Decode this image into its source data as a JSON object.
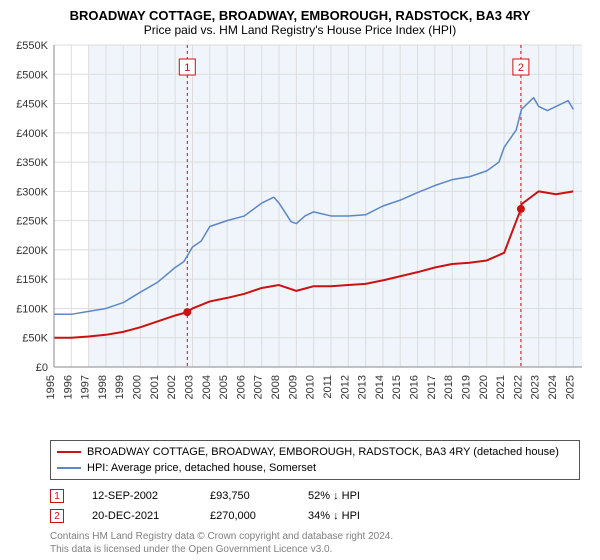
{
  "chart": {
    "title": "BROADWAY COTTAGE, BROADWAY, EMBOROUGH, RADSTOCK, BA3 4RY",
    "subtitle": "Price paid vs. HM Land Registry's House Price Index (HPI)",
    "background_color": "#ffffff",
    "plot_shade_color": "#f0f5fb",
    "grid_color": "#dddddd",
    "axis_color": "#888888",
    "text_color": "#333333",
    "label_fontsize": 11,
    "x_years": [
      1995,
      1996,
      1997,
      1998,
      1999,
      2000,
      2001,
      2002,
      2003,
      2004,
      2005,
      2006,
      2007,
      2008,
      2009,
      2010,
      2011,
      2012,
      2013,
      2014,
      2015,
      2016,
      2017,
      2018,
      2019,
      2020,
      2021,
      2022,
      2023,
      2024,
      2025
    ],
    "xlim": [
      1995,
      2025.5
    ],
    "ylim": [
      0,
      550000
    ],
    "ytick_step": 50000,
    "ytick_labels": [
      "£0",
      "£50K",
      "£100K",
      "£150K",
      "£200K",
      "£250K",
      "£300K",
      "£350K",
      "£400K",
      "£450K",
      "£500K",
      "£550K"
    ],
    "plot_shade_range": [
      1997,
      2025.5
    ],
    "series": [
      {
        "label": "BROADWAY COTTAGE, BROADWAY, EMBOROUGH, RADSTOCK, BA3 4RY (detached house)",
        "color": "#cc1111",
        "line_width": 2,
        "points": [
          [
            1995,
            50000
          ],
          [
            1996,
            50000
          ],
          [
            1997,
            52000
          ],
          [
            1998,
            55000
          ],
          [
            1999,
            60000
          ],
          [
            2000,
            68000
          ],
          [
            2001,
            78000
          ],
          [
            2002,
            88000
          ],
          [
            2002.7,
            93750
          ],
          [
            2003,
            100000
          ],
          [
            2004,
            112000
          ],
          [
            2005,
            118000
          ],
          [
            2006,
            125000
          ],
          [
            2007,
            135000
          ],
          [
            2008,
            140000
          ],
          [
            2009,
            130000
          ],
          [
            2010,
            138000
          ],
          [
            2011,
            138000
          ],
          [
            2012,
            140000
          ],
          [
            2013,
            142000
          ],
          [
            2014,
            148000
          ],
          [
            2015,
            155000
          ],
          [
            2016,
            162000
          ],
          [
            2017,
            170000
          ],
          [
            2018,
            176000
          ],
          [
            2019,
            178000
          ],
          [
            2020,
            182000
          ],
          [
            2021,
            195000
          ],
          [
            2021.97,
            270000
          ],
          [
            2022,
            278000
          ],
          [
            2023,
            300000
          ],
          [
            2024,
            295000
          ],
          [
            2025,
            300000
          ]
        ],
        "dots": [
          [
            2002.7,
            93750
          ],
          [
            2021.97,
            270000
          ]
        ]
      },
      {
        "label": "HPI: Average price, detached house, Somerset",
        "color": "#5b87c7",
        "line_width": 1.5,
        "points": [
          [
            1995,
            90000
          ],
          [
            1996,
            90000
          ],
          [
            1997,
            95000
          ],
          [
            1998,
            100000
          ],
          [
            1999,
            110000
          ],
          [
            2000,
            128000
          ],
          [
            2001,
            145000
          ],
          [
            2002,
            170000
          ],
          [
            2002.5,
            180000
          ],
          [
            2003,
            205000
          ],
          [
            2003.5,
            215000
          ],
          [
            2004,
            240000
          ],
          [
            2005,
            250000
          ],
          [
            2006,
            258000
          ],
          [
            2007,
            280000
          ],
          [
            2007.7,
            290000
          ],
          [
            2008,
            280000
          ],
          [
            2008.7,
            248000
          ],
          [
            2009,
            245000
          ],
          [
            2009.5,
            258000
          ],
          [
            2010,
            265000
          ],
          [
            2011,
            258000
          ],
          [
            2012,
            258000
          ],
          [
            2013,
            260000
          ],
          [
            2014,
            275000
          ],
          [
            2015,
            285000
          ],
          [
            2016,
            298000
          ],
          [
            2017,
            310000
          ],
          [
            2018,
            320000
          ],
          [
            2019,
            325000
          ],
          [
            2020,
            335000
          ],
          [
            2020.7,
            350000
          ],
          [
            2021,
            375000
          ],
          [
            2021.7,
            405000
          ],
          [
            2022,
            440000
          ],
          [
            2022.7,
            460000
          ],
          [
            2023,
            445000
          ],
          [
            2023.5,
            438000
          ],
          [
            2024,
            445000
          ],
          [
            2024.7,
            455000
          ],
          [
            2025,
            440000
          ]
        ]
      }
    ],
    "markers": [
      {
        "n": "1",
        "color": "#cc1111",
        "year": 2002.7,
        "date": "12-SEP-2002",
        "price": "£93,750",
        "pct": "52%  ↓  HPI"
      },
      {
        "n": "2",
        "color": "#cc1111",
        "year": 2021.97,
        "date": "20-DEC-2021",
        "price": "£270,000",
        "pct": "34%  ↓  HPI"
      }
    ],
    "attribution": [
      "Contains HM Land Registry data © Crown copyright and database right 2024.",
      "This data is licensed under the Open Government Licence v3.0."
    ]
  }
}
